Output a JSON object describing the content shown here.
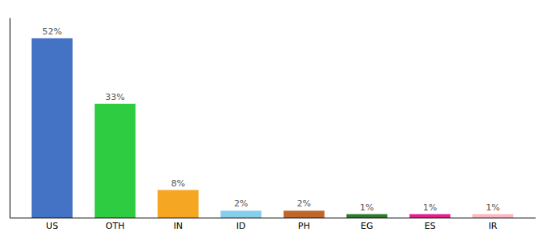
{
  "chart_data": {
    "type": "bar",
    "categories": [
      "US",
      "OTH",
      "IN",
      "ID",
      "PH",
      "EG",
      "ES",
      "IR"
    ],
    "values": [
      52,
      33,
      8,
      2,
      2,
      1,
      1,
      1
    ],
    "value_labels": [
      "52%",
      "33%",
      "8%",
      "2%",
      "2%",
      "1%",
      "1%",
      "1%"
    ],
    "colors": [
      "#4472c4",
      "#2ecc40",
      "#f5a623",
      "#87ceeb",
      "#c0652b",
      "#2d7a2d",
      "#e91e8c",
      "#ffb6c1"
    ],
    "ylim": [
      0,
      58
    ],
    "tick_labels": "x",
    "grid": false
  }
}
